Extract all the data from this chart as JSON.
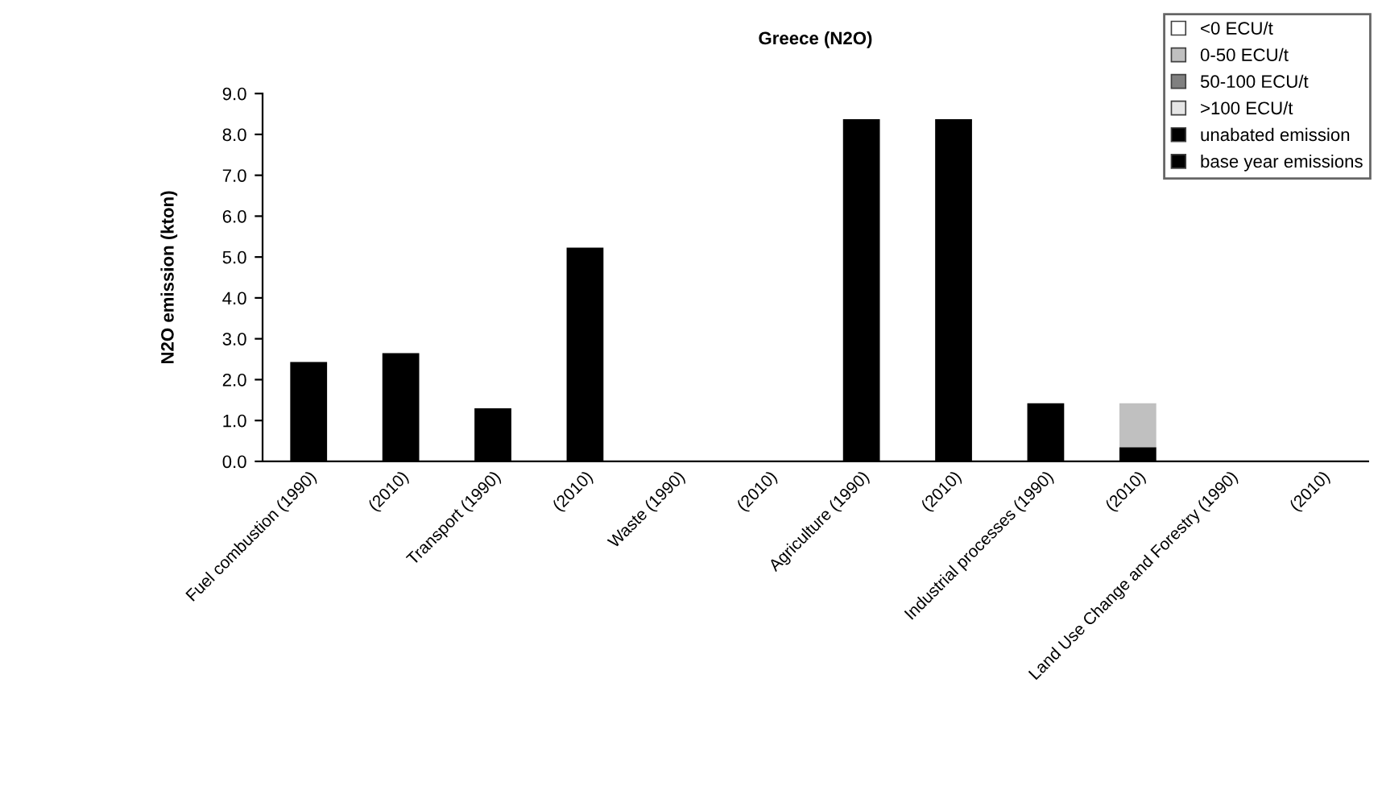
{
  "chart_data": {
    "type": "bar",
    "title": "Greece (N2O)",
    "ylabel": "N2O emission (kton)",
    "stacked": true,
    "categories": [
      "Fuel combustion (1990)",
      "(2010)",
      "Transport (1990)",
      "(2010)",
      "Waste (1990)",
      "(2010)",
      "Agriculture (1990)",
      "(2010)",
      "Industrial processes (1990)",
      "(2010)",
      "Land Use Change and Forestry (1990)",
      "(2010)"
    ],
    "series": [
      {
        "name": "base year emissions",
        "color": "#000000",
        "values": [
          2.43,
          null,
          1.3,
          null,
          0,
          null,
          8.37,
          null,
          1.42,
          null,
          0,
          null
        ]
      },
      {
        "name": "unabated emission",
        "color": "#000000",
        "values": [
          null,
          2.65,
          null,
          5.23,
          null,
          0,
          null,
          8.37,
          null,
          0.35,
          null,
          0
        ]
      },
      {
        "name": ">100 ECU/t",
        "color": "#e6e6e6",
        "values": [
          null,
          0,
          null,
          0,
          null,
          0,
          null,
          0,
          null,
          0,
          null,
          0
        ]
      },
      {
        "name": "50-100 ECU/t",
        "color": "#808080",
        "values": [
          null,
          0,
          null,
          0,
          null,
          0,
          null,
          0,
          null,
          0,
          null,
          0
        ]
      },
      {
        "name": "0-50 ECU/t",
        "color": "#c0c0c0",
        "values": [
          null,
          0,
          null,
          0,
          null,
          0,
          null,
          0,
          null,
          1.07,
          null,
          0
        ]
      },
      {
        "name": "<0 ECU/t",
        "color": "#ffffff",
        "values": [
          null,
          0,
          null,
          0,
          null,
          0,
          null,
          0,
          null,
          0,
          null,
          0
        ]
      }
    ],
    "ylim": [
      0,
      9
    ],
    "yticks": [
      {
        "value": 0,
        "label": "0.0"
      },
      {
        "value": 1,
        "label": "1.0"
      },
      {
        "value": 2,
        "label": "2.0"
      },
      {
        "value": 3,
        "label": "3.0"
      },
      {
        "value": 4,
        "label": "4.0"
      },
      {
        "value": 5,
        "label": "5.0"
      },
      {
        "value": 6,
        "label": "6.0"
      },
      {
        "value": 7,
        "label": "7.0"
      },
      {
        "value": 8,
        "label": "8.0"
      },
      {
        "value": 9,
        "label": "9.0"
      }
    ],
    "legend": "top right"
  }
}
